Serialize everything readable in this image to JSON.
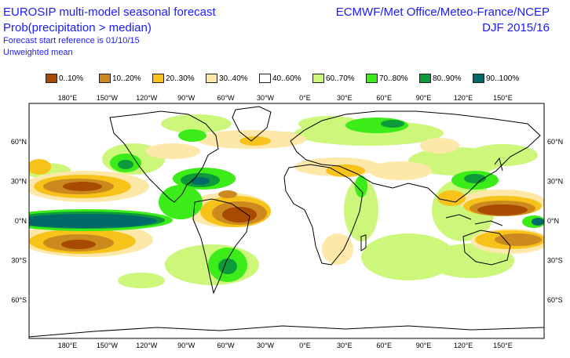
{
  "header": {
    "title_line1": "EUROSIP multi-model seasonal forecast",
    "title_line2": "Prob(precipitation > median)",
    "forecast_ref": "Forecast start reference is 01/10/15",
    "mean_type": "Unweighted mean",
    "source": "ECMWF/Met Office/Meteo-France/NCEP",
    "season": "DJF 2015/16"
  },
  "legend": [
    {
      "label": "0..10%",
      "color": "#a84a00"
    },
    {
      "label": "10..20%",
      "color": "#cc8a1e"
    },
    {
      "label": "20..30%",
      "color": "#f7c21a"
    },
    {
      "label": "30..40%",
      "color": "#fde8aa"
    },
    {
      "label": "40..60%",
      "color": "#ffffff"
    },
    {
      "label": "60..70%",
      "color": "#cdf77a"
    },
    {
      "label": "70..80%",
      "color": "#3bec18"
    },
    {
      "label": "80..90%",
      "color": "#0c9a3a"
    },
    {
      "label": "90..100%",
      "color": "#006a6a"
    }
  ],
  "map": {
    "lon_labels": [
      "180°E",
      "150°W",
      "120°W",
      "90°W",
      "60°W",
      "30°W",
      "0°E",
      "30°E",
      "60°E",
      "90°E",
      "120°E",
      "150°E"
    ],
    "lat_labels_left": [
      "60°N",
      "30°N",
      "0°N",
      "30°S",
      "60°S"
    ],
    "lat_labels_right": [
      "60°N",
      "30°N",
      "0°N",
      "30°S",
      "60°S"
    ]
  }
}
